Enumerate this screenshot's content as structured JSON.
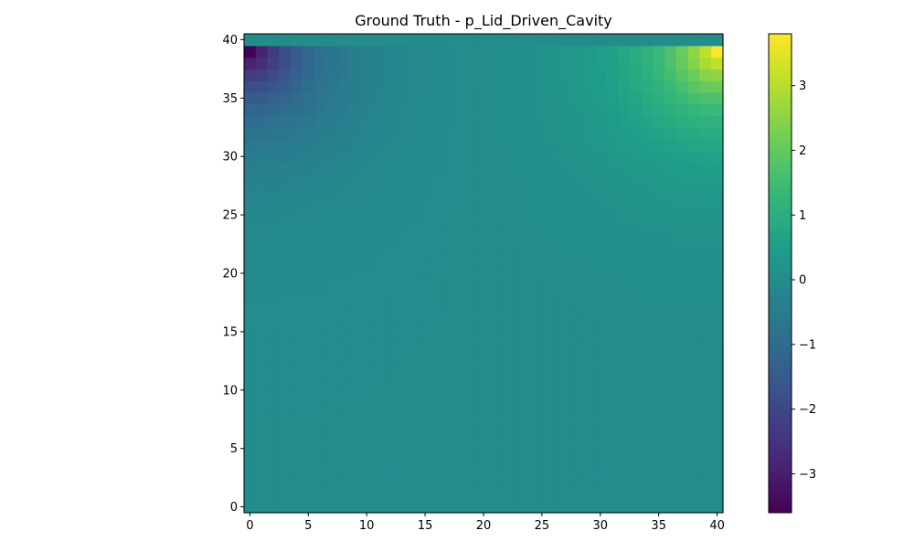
{
  "chart_data": {
    "type": "heatmap",
    "title": "Ground Truth - p_Lid_Driven_Cavity",
    "xlabel": "",
    "ylabel": "",
    "grid_size": [
      41,
      41
    ],
    "xlim": [
      -0.5,
      40.5
    ],
    "ylim": [
      -0.5,
      40.5
    ],
    "x_ticks": [
      0,
      5,
      10,
      15,
      20,
      25,
      30,
      35,
      40
    ],
    "x_tick_labels": [
      "0",
      "5",
      "10",
      "15",
      "20",
      "25",
      "30",
      "35",
      "40"
    ],
    "y_ticks": [
      0,
      5,
      10,
      15,
      20,
      25,
      30,
      35,
      40
    ],
    "y_tick_labels": [
      "0",
      "5",
      "10",
      "15",
      "20",
      "25",
      "30",
      "35",
      "40"
    ],
    "colormap": "viridis",
    "color_range": [
      -3.6,
      3.8
    ],
    "colorbar_ticks": [
      -3,
      -2,
      -1,
      0,
      1,
      2,
      3
    ],
    "colorbar_tick_labels": [
      "−3",
      "−2",
      "−1",
      "0",
      "1",
      "2",
      "3"
    ],
    "value_notes": {
      "top_lid_row": 0.0,
      "top_left_corner_min": -3.6,
      "top_right_corner_max": 3.8,
      "bulk_interior": 0.0
    },
    "grid": false,
    "legend": "colorbar-right"
  }
}
